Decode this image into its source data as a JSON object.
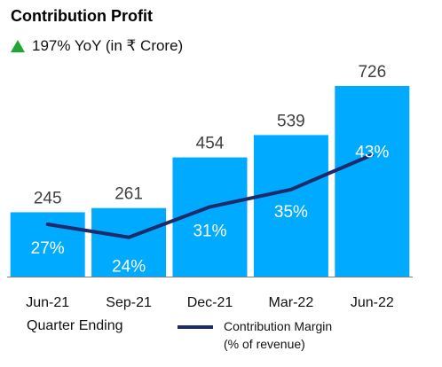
{
  "header": {
    "title": "Contribution Profit",
    "subtitle": "197% YoY (in ₹ Crore)"
  },
  "footer": {
    "x_caption": "Quarter Ending",
    "legend_line1": "Contribution Margin",
    "legend_line2": "(% of revenue)"
  },
  "colors": {
    "bar": "#00aaff",
    "line": "#1d2a6b",
    "up_arrow": "#1fa637"
  },
  "chart_data": {
    "type": "bar",
    "title": "Contribution Profit",
    "subtitle": "197% YoY (in ₹ Crore)",
    "xlabel": "Quarter Ending",
    "ylabel": "",
    "categories": [
      "Jun-21",
      "Sep-21",
      "Dec-21",
      "Mar-22",
      "Jun-22"
    ],
    "series": [
      {
        "values": [
          245,
          261,
          454,
          539,
          726
        ]
      },
      {
        "name": "Contribution Margin (% of revenue)",
        "type": "line",
        "values": [
          27,
          24,
          31,
          35,
          43
        ],
        "labels": [
          "27%",
          "24%",
          "31%",
          "35%",
          "43%"
        ]
      }
    ],
    "ylim": [
      0,
      726
    ],
    "grid": false,
    "legend": "bottom"
  }
}
